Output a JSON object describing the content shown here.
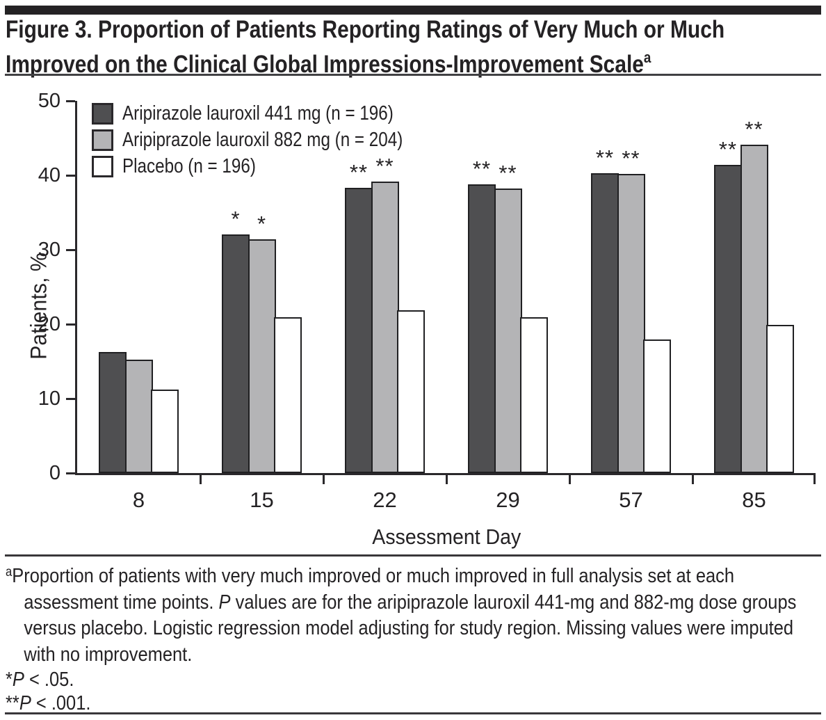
{
  "figure": {
    "title_line1": "Figure 3. Proportion of Patients Reporting Ratings of Very Much or Much",
    "title_line2": "Improved on the Clinical Global Impressions-Improvement Scale",
    "title_superscript": "a"
  },
  "chart_data": {
    "type": "bar",
    "categories": [
      "8",
      "15",
      "22",
      "29",
      "57",
      "85"
    ],
    "series": [
      {
        "name": "Aripirazole lauroxil 441 mg (n = 196)",
        "color": "#4f4f51",
        "values": [
          16.3,
          32.1,
          38.3,
          38.8,
          40.3,
          41.4
        ],
        "annotations": [
          "",
          "*",
          "**",
          "**",
          "**",
          "**"
        ]
      },
      {
        "name": "Aripiprazole lauroxil 882 mg (n = 204)",
        "color": "#b4b4b6",
        "values": [
          15.2,
          31.4,
          39.2,
          38.2,
          40.2,
          44.1
        ],
        "annotations": [
          "",
          "*",
          "**",
          "**",
          "**",
          "**"
        ]
      },
      {
        "name": "Placebo (n = 196)",
        "color": "#ffffff",
        "values": [
          11.2,
          20.9,
          21.9,
          20.9,
          17.9,
          19.9
        ],
        "annotations": [
          "",
          "",
          "",
          "",
          "",
          ""
        ]
      }
    ],
    "xlabel": "Assessment Day",
    "ylabel": "Patients, %",
    "ylim": [
      0,
      50
    ],
    "yticks": [
      0,
      10,
      20,
      30,
      40,
      50
    ],
    "grid": false,
    "legend_position": "top-left-inside"
  },
  "footnote": {
    "marker": "a",
    "segments": [
      {
        "text": "Proportion of patients with very much improved or much improved in full analysis set at each assessment time points. ",
        "italic": false
      },
      {
        "text": "P",
        "italic": true
      },
      {
        "text": " values are for the aripiprazole lauroxil 441-mg and 882-mg dose groups versus placebo. Logistic regression model adjusting for study region. Missing values were imputed with no improvement.",
        "italic": false
      }
    ]
  },
  "significance_notes": [
    {
      "stars": "*",
      "p": "P",
      "rest": " < .05."
    },
    {
      "stars": "**",
      "p": "P",
      "rest": " < .001."
    }
  ],
  "colors": {
    "ink": "#242224",
    "bar_441": "#4f4f51",
    "bar_882": "#b4b4b6",
    "bar_placebo": "#ffffff",
    "bar_border": "#202022"
  }
}
